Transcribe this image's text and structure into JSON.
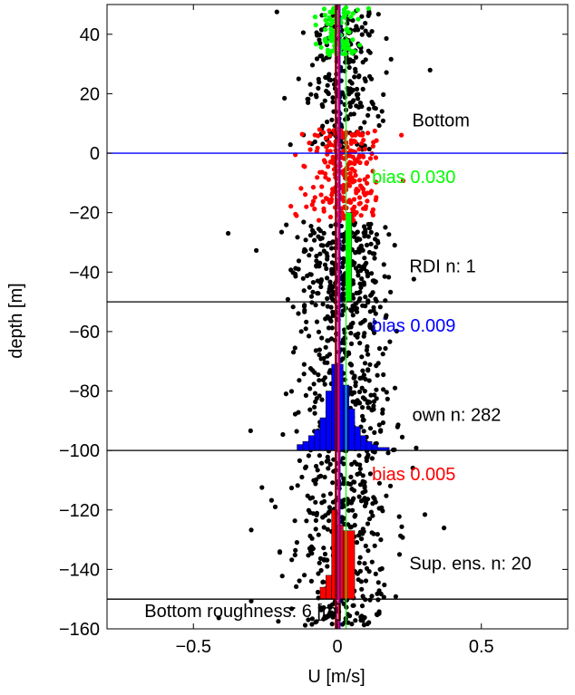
{
  "chart_data": {
    "type": "scatter",
    "xlabel": "U [m/s]",
    "ylabel": "depth [m]",
    "xlim": [
      -0.8,
      0.8
    ],
    "ylim": [
      -160,
      50
    ],
    "xticks": [
      -0.5,
      0,
      0.5
    ],
    "yticks": [
      40,
      20,
      0,
      -20,
      -40,
      -60,
      -80,
      -100,
      -120,
      -140,
      -160
    ],
    "grid": false,
    "colors": {
      "scatter_default": "#000000",
      "rdi": "#00ff00",
      "own": "#0000ff",
      "sup_ens": "#ff0000",
      "center_line": "#800000",
      "center_line_2": "#ff00ff"
    },
    "horizontal_lines": [
      {
        "y": 0,
        "color": "#0000ff"
      },
      {
        "y": -50,
        "color": "#000000"
      },
      {
        "y": -100,
        "color": "#000000"
      },
      {
        "y": -150,
        "color": "#000000"
      }
    ],
    "vertical_lines": [
      {
        "x": -0.005,
        "color": "#800000"
      },
      {
        "x": 0.005,
        "color": "#ff00ff"
      },
      {
        "x": 0.03,
        "color": "#00ff00"
      },
      {
        "x": 0.009,
        "color": "#0000ff"
      },
      {
        "x": 0.005,
        "color": "#ff0000"
      }
    ],
    "histograms": [
      {
        "name": "RDI",
        "color": "#00ff00",
        "base_y": -50,
        "bins": [
          {
            "x0": 0.03,
            "x1": 0.05,
            "top": -20
          }
        ]
      },
      {
        "name": "own",
        "color": "#0000ff",
        "base_y": -100,
        "bins": [
          {
            "x0": -0.14,
            "x1": -0.12,
            "top": -98
          },
          {
            "x0": -0.12,
            "x1": -0.1,
            "top": -97
          },
          {
            "x0": -0.1,
            "x1": -0.08,
            "top": -95
          },
          {
            "x0": -0.08,
            "x1": -0.06,
            "top": -93
          },
          {
            "x0": -0.06,
            "x1": -0.04,
            "top": -89
          },
          {
            "x0": -0.04,
            "x1": -0.02,
            "top": -80
          },
          {
            "x0": -0.02,
            "x1": 0.0,
            "top": -71
          },
          {
            "x0": 0.0,
            "x1": 0.02,
            "top": -71
          },
          {
            "x0": 0.02,
            "x1": 0.04,
            "top": -78
          },
          {
            "x0": 0.04,
            "x1": 0.06,
            "top": -86
          },
          {
            "x0": 0.06,
            "x1": 0.08,
            "top": -92
          },
          {
            "x0": 0.08,
            "x1": 0.1,
            "top": -95
          },
          {
            "x0": 0.1,
            "x1": 0.12,
            "top": -97
          },
          {
            "x0": 0.12,
            "x1": 0.14,
            "top": -98
          },
          {
            "x0": 0.14,
            "x1": 0.18,
            "top": -99
          }
        ]
      },
      {
        "name": "Sup. ens.",
        "color": "#ff0000",
        "base_y": -150,
        "bins": [
          {
            "x0": -0.06,
            "x1": -0.04,
            "top": -146
          },
          {
            "x0": -0.04,
            "x1": -0.02,
            "top": -142
          },
          {
            "x0": -0.02,
            "x1": 0.0,
            "top": -120
          },
          {
            "x0": 0.0,
            "x1": 0.02,
            "top": -125
          },
          {
            "x0": 0.02,
            "x1": 0.06,
            "top": -127
          }
        ]
      }
    ],
    "clusters": [
      {
        "color": "#00ff00",
        "count": 110,
        "y_range": [
          33,
          50
        ],
        "center": 0.0,
        "spread": 0.03
      },
      {
        "color": "#000000",
        "count": 260,
        "y_range": [
          1,
          48
        ],
        "center": 0.02,
        "spread": 0.06
      },
      {
        "color": "#ff0000",
        "count": 260,
        "y_range": [
          -23,
          8
        ],
        "center": 0.02,
        "spread": 0.055
      },
      {
        "color": "#000000",
        "count": 260,
        "y_range": [
          -50,
          -23
        ],
        "center": 0.02,
        "spread": 0.075
      },
      {
        "color": "#000000",
        "count": 320,
        "y_range": [
          -100,
          -50
        ],
        "center": 0.02,
        "spread": 0.08
      },
      {
        "color": "#000000",
        "count": 380,
        "y_range": [
          -160,
          -100
        ],
        "center": 0.02,
        "spread": 0.075
      }
    ],
    "annotations": [
      {
        "text": "Bottom",
        "x": 0.26,
        "y": 9,
        "color": "#000000"
      },
      {
        "text": "bias  0.030",
        "x": 0.12,
        "y": -10,
        "color": "#00ff00"
      },
      {
        "text": "RDI n: 1",
        "x": 0.25,
        "y": -40,
        "color": "#000000"
      },
      {
        "text": "bias  0.009",
        "x": 0.12,
        "y": -60,
        "color": "#0000ff"
      },
      {
        "text": "own n: 282",
        "x": 0.26,
        "y": -90,
        "color": "#000000"
      },
      {
        "text": "bias  0.005",
        "x": 0.12,
        "y": -110,
        "color": "#ff0000"
      },
      {
        "text": "Sup. ens. n: 20",
        "x": 0.25,
        "y": -140,
        "color": "#000000"
      },
      {
        "text": "Bottom roughness: 6 [m]",
        "x": -0.67,
        "y": -156,
        "color": "#000000"
      }
    ]
  }
}
